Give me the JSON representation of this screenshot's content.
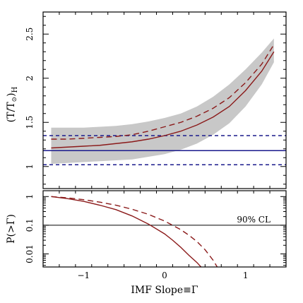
{
  "chart_data": [
    {
      "type": "line",
      "panel": "top",
      "ylabel": "(T/T⊙)H",
      "ylabel_parts": [
        "(",
        "T",
        "/",
        "T",
        "⊙",
        ")",
        "H"
      ],
      "xlim": [
        -1.5,
        1.5
      ],
      "ylim": [
        0.75,
        2.75
      ],
      "y_ticks": [
        1,
        1.5,
        2,
        2.5
      ],
      "y_tick_labels": [
        "1",
        "1.5",
        "2",
        "2.5"
      ],
      "colors": {
        "model": "#8b1a1a",
        "band": "#c8c8c8",
        "obs": "#1a1a8c"
      },
      "band": {
        "x": [
          -1.4,
          -1.2,
          -1.0,
          -0.8,
          -0.6,
          -0.4,
          -0.2,
          0.0,
          0.2,
          0.4,
          0.6,
          0.8,
          1.0,
          1.2,
          1.35
        ],
        "lo": [
          1.03,
          1.04,
          1.05,
          1.06,
          1.07,
          1.08,
          1.11,
          1.14,
          1.19,
          1.26,
          1.36,
          1.49,
          1.68,
          1.93,
          2.18
        ],
        "hi": [
          1.44,
          1.44,
          1.44,
          1.45,
          1.46,
          1.48,
          1.51,
          1.55,
          1.6,
          1.68,
          1.79,
          1.93,
          2.1,
          2.29,
          2.45
        ]
      },
      "series": [
        {
          "style": "solid",
          "color": "#8b1a1a",
          "x": [
            -1.4,
            -1.2,
            -1.0,
            -0.8,
            -0.6,
            -0.4,
            -0.2,
            0.0,
            0.2,
            0.4,
            0.6,
            0.8,
            1.0,
            1.2,
            1.35
          ],
          "y": [
            1.21,
            1.22,
            1.23,
            1.24,
            1.26,
            1.28,
            1.31,
            1.35,
            1.4,
            1.47,
            1.56,
            1.68,
            1.86,
            2.08,
            2.3
          ]
        },
        {
          "style": "dashed",
          "color": "#8b1a1a",
          "x": [
            -1.4,
            -1.2,
            -1.0,
            -0.8,
            -0.6,
            -0.4,
            -0.2,
            0.0,
            0.2,
            0.4,
            0.6,
            0.8,
            1.0,
            1.2,
            1.35
          ],
          "y": [
            1.31,
            1.31,
            1.32,
            1.33,
            1.34,
            1.36,
            1.4,
            1.45,
            1.5,
            1.57,
            1.66,
            1.78,
            1.95,
            2.16,
            2.38
          ]
        }
      ],
      "hlines": [
        {
          "y": 1.18,
          "style": "solid",
          "color": "#1a1a8c"
        },
        {
          "y": 1.35,
          "style": "dashed",
          "color": "#1a1a8c"
        },
        {
          "y": 1.02,
          "style": "dashed",
          "color": "#1a1a8c"
        }
      ]
    },
    {
      "type": "line",
      "panel": "bottom",
      "xlabel": "IMF Slope≡Γ",
      "ylabel": "P(>Γ)",
      "xlim": [
        -1.5,
        1.5
      ],
      "ylim": [
        0.0035,
        1.6
      ],
      "scale": "log",
      "x_ticks": [
        -1,
        0,
        1
      ],
      "x_tick_labels": [
        "−1",
        "0",
        "1"
      ],
      "y_ticks": [
        1,
        0.1,
        0.01
      ],
      "y_tick_labels": [
        "1",
        "0.1",
        "0.01"
      ],
      "series": [
        {
          "style": "solid",
          "color": "#8b1a1a",
          "x": [
            -1.4,
            -1.2,
            -1.0,
            -0.8,
            -0.6,
            -0.4,
            -0.2,
            0.0,
            0.1,
            0.2,
            0.3,
            0.4,
            0.45
          ],
          "y": [
            1.0,
            0.85,
            0.68,
            0.5,
            0.35,
            0.21,
            0.11,
            0.05,
            0.03,
            0.017,
            0.009,
            0.005,
            0.0035
          ]
        },
        {
          "style": "dashed",
          "color": "#8b1a1a",
          "x": [
            -1.4,
            -1.2,
            -1.0,
            -0.8,
            -0.6,
            -0.4,
            -0.2,
            0.0,
            0.2,
            0.3,
            0.4,
            0.5,
            0.6,
            0.65
          ],
          "y": [
            1.0,
            0.9,
            0.78,
            0.64,
            0.5,
            0.36,
            0.24,
            0.14,
            0.07,
            0.045,
            0.027,
            0.014,
            0.006,
            0.0035
          ]
        }
      ],
      "hlines": [
        {
          "y": 0.1,
          "style": "solid",
          "color": "#000000"
        }
      ],
      "annotation": {
        "text": "90% CL"
      }
    }
  ]
}
